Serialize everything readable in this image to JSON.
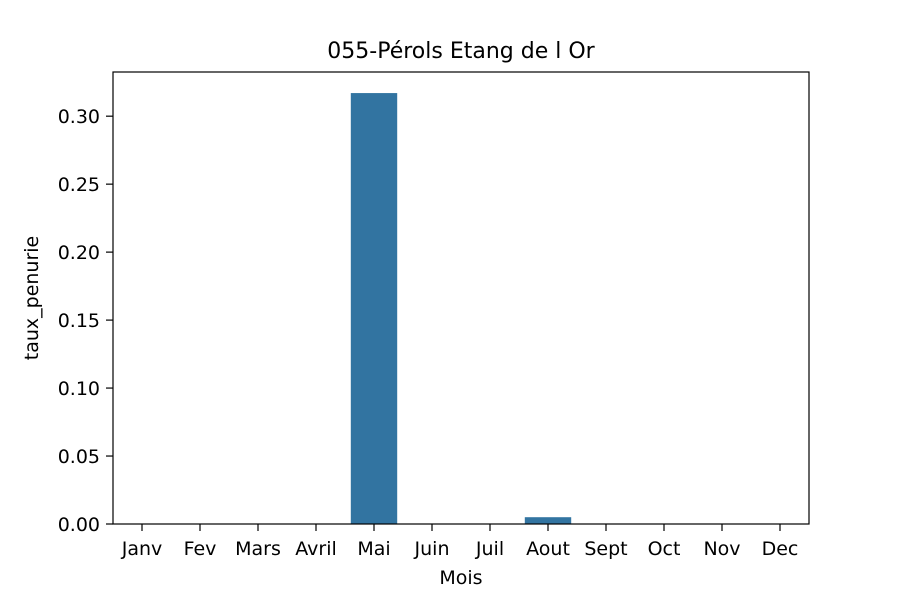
{
  "chart_data": {
    "type": "bar",
    "title": "055-Pérols Etang de l Or",
    "xlabel": "Mois",
    "ylabel": "taux_penurie",
    "categories": [
      "Janv",
      "Fev",
      "Mars",
      "Avril",
      "Mai",
      "Juin",
      "Juil",
      "Aout",
      "Sept",
      "Oct",
      "Nov",
      "Dec"
    ],
    "values": [
      0,
      0,
      0,
      0,
      0.317,
      0,
      0,
      0.005,
      0,
      0,
      0,
      0
    ],
    "ylim": [
      0,
      0.3325
    ],
    "yticks": [
      "0.00",
      "0.05",
      "0.10",
      "0.15",
      "0.20",
      "0.25",
      "0.30"
    ],
    "bar_color": "#3274a1",
    "grid": false,
    "legend": "none"
  }
}
